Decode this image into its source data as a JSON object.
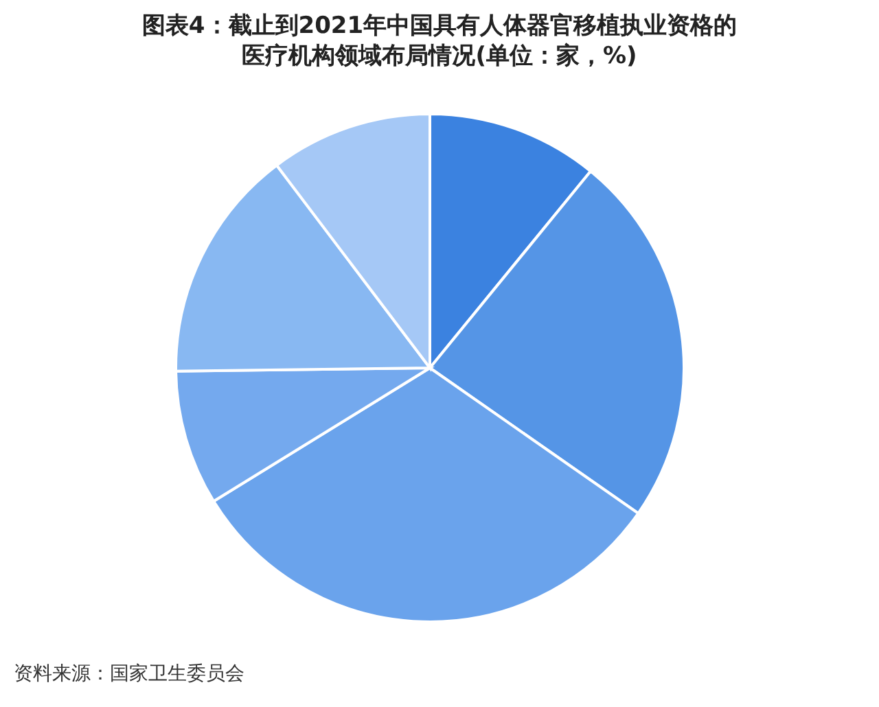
{
  "chart_data": {
    "type": "pie",
    "title": "图表4：截止到2021年中国具有人体器官移植执业资格的医疗机构领域布局情况(单位：家，%)",
    "categories": [
      null,
      null,
      null,
      null,
      null,
      null
    ],
    "values": [
      10.9,
      23.8,
      31.5,
      8.6,
      14.9,
      10.3
    ],
    "colors": [
      "#3b82e0",
      "#5595e6",
      "#6aa3ec",
      "#74a9ee",
      "#88b8f2",
      "#a5c8f6"
    ],
    "annotations": [
      "资料来源：国家卫生委员会"
    ]
  }
}
